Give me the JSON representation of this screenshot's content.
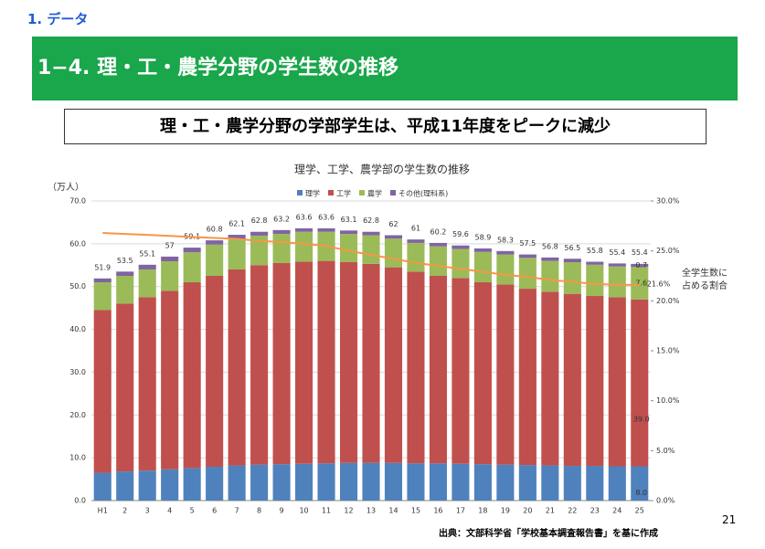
{
  "header": {
    "section": "1. データ",
    "title": "1−4. 理・工・農学分野の学生数の推移",
    "headline": "理・工・農学分野の学部学生は、平成11年度をピークに減少"
  },
  "chart_data": {
    "type": "bar",
    "stacked": true,
    "title": "理学、工学、農学部の学生数の推移",
    "y_label": "（万人）",
    "categories": [
      "H1",
      "2",
      "3",
      "4",
      "5",
      "6",
      "7",
      "8",
      "9",
      "10",
      "11",
      "12",
      "13",
      "14",
      "15",
      "16",
      "17",
      "18",
      "19",
      "20",
      "21",
      "22",
      "23",
      "24",
      "25"
    ],
    "series": [
      {
        "name": "理学",
        "color": "#4f81bd",
        "values": [
          6.5,
          6.8,
          7.0,
          7.3,
          7.6,
          7.9,
          8.2,
          8.4,
          8.5,
          8.6,
          8.7,
          8.8,
          8.8,
          8.8,
          8.7,
          8.7,
          8.6,
          8.5,
          8.4,
          8.3,
          8.2,
          8.1,
          8.1,
          8.0,
          8.0
        ],
        "value_labels": [
          null,
          null,
          null,
          null,
          null,
          null,
          null,
          null,
          null,
          null,
          null,
          null,
          null,
          null,
          null,
          null,
          null,
          null,
          null,
          null,
          null,
          null,
          null,
          null,
          "8.0"
        ]
      },
      {
        "name": "工学",
        "color": "#c0504d",
        "values": [
          38.0,
          39.2,
          40.5,
          41.7,
          43.4,
          44.6,
          45.8,
          46.6,
          47.0,
          47.2,
          47.3,
          46.9,
          46.5,
          45.7,
          44.8,
          43.8,
          43.4,
          42.5,
          42.1,
          41.2,
          40.6,
          40.2,
          39.7,
          39.5,
          39.0
        ],
        "value_labels": [
          null,
          null,
          null,
          null,
          null,
          null,
          null,
          null,
          null,
          null,
          null,
          null,
          null,
          null,
          null,
          null,
          null,
          null,
          null,
          null,
          null,
          null,
          null,
          null,
          "39.0"
        ]
      },
      {
        "name": "農学",
        "color": "#9bbb59",
        "values": [
          6.5,
          6.5,
          6.5,
          6.9,
          7.0,
          7.3,
          7.1,
          6.9,
          6.8,
          7.0,
          6.8,
          6.6,
          6.7,
          6.7,
          6.7,
          6.9,
          6.8,
          7.1,
          7.0,
          7.2,
          7.2,
          7.4,
          7.3,
          7.2,
          7.6
        ],
        "value_labels": [
          null,
          null,
          null,
          null,
          null,
          null,
          null,
          null,
          null,
          null,
          null,
          null,
          null,
          null,
          null,
          null,
          null,
          null,
          null,
          null,
          null,
          null,
          null,
          null,
          "7.6"
        ]
      },
      {
        "name": "その他(理科系)",
        "color": "#8064a2",
        "values": [
          0.9,
          1.0,
          1.1,
          1.1,
          1.1,
          1.0,
          1.0,
          0.9,
          0.9,
          0.8,
          0.8,
          0.8,
          0.8,
          0.8,
          0.8,
          0.8,
          0.8,
          0.8,
          0.8,
          0.8,
          0.8,
          0.8,
          0.7,
          0.7,
          0.7
        ],
        "value_labels": [
          null,
          null,
          null,
          null,
          null,
          null,
          null,
          null,
          null,
          null,
          null,
          null,
          null,
          null,
          null,
          null,
          null,
          null,
          null,
          null,
          null,
          null,
          null,
          null,
          "0.7"
        ]
      }
    ],
    "totals": [
      51.9,
      53.5,
      55.1,
      57.0,
      59.1,
      60.8,
      62.1,
      62.8,
      63.2,
      63.6,
      63.6,
      63.1,
      62.8,
      62.0,
      61.0,
      60.2,
      59.6,
      58.9,
      58.3,
      57.5,
      56.8,
      56.5,
      55.8,
      55.4,
      55.4
    ],
    "line": {
      "type": "line",
      "axis": "y2",
      "color": "#f79646",
      "values": [
        26.8,
        26.7,
        26.6,
        26.5,
        26.4,
        26.3,
        26.2,
        26.0,
        25.9,
        25.7,
        25.5,
        25.0,
        24.6,
        24.2,
        23.8,
        23.5,
        23.2,
        22.9,
        22.6,
        22.4,
        22.1,
        21.9,
        21.7,
        21.6,
        21.6
      ],
      "value_labels": [
        null,
        null,
        null,
        null,
        null,
        null,
        null,
        null,
        null,
        null,
        null,
        null,
        null,
        null,
        null,
        null,
        null,
        null,
        null,
        null,
        null,
        null,
        null,
        null,
        "21.6%"
      ]
    },
    "line_label": [
      "全学生数に",
      "占める割合"
    ],
    "ylim": [
      0,
      70
    ],
    "yticks": [
      {
        "value": 0,
        "label": "0.0"
      },
      {
        "value": 10,
        "label": "10.0"
      },
      {
        "value": 20,
        "label": "20.0"
      },
      {
        "value": 30,
        "label": "30.0"
      },
      {
        "value": 40,
        "label": "40.0"
      },
      {
        "value": 50,
        "label": "50.0"
      },
      {
        "value": 60,
        "label": "60.0"
      },
      {
        "value": 70,
        "label": "70.0"
      }
    ],
    "y2lim": [
      0,
      30
    ],
    "y2ticks": [
      {
        "value": 0,
        "label": "0.0%"
      },
      {
        "value": 5,
        "label": "5.0%"
      },
      {
        "value": 10,
        "label": "10.0%"
      },
      {
        "value": 15,
        "label": "15.0%"
      },
      {
        "value": 20,
        "label": "20.0%"
      },
      {
        "value": 25,
        "label": "25.0%"
      },
      {
        "value": 30,
        "label": "30.0%"
      }
    ],
    "grid": true
  },
  "footer": {
    "source": "出典：文部科学省「学校基本調査報告書」を基に作成",
    "page": "21"
  }
}
